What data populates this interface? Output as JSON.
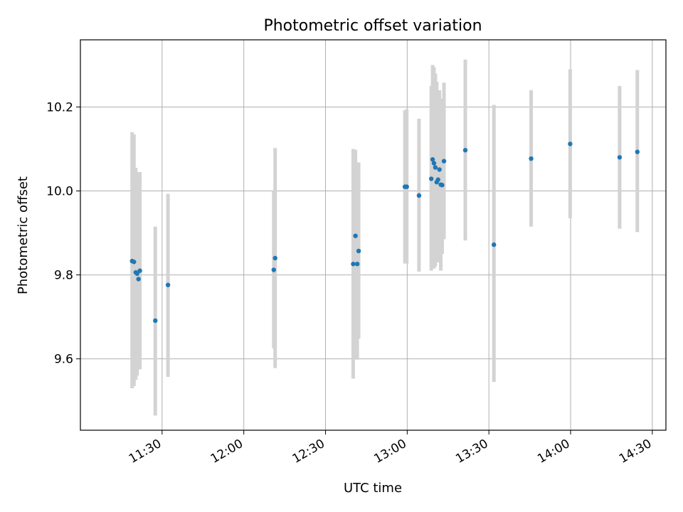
{
  "chart_data": {
    "type": "scatter",
    "title": "Photometric offset variation",
    "xlabel": "UTC time",
    "ylabel": "Photometric offset",
    "xlim": [
      "11:00",
      "14:35"
    ],
    "ylim": [
      9.43,
      10.36
    ],
    "x_ticks": [
      "11:30",
      "12:00",
      "12:30",
      "13:00",
      "13:30",
      "14:00",
      "14:30"
    ],
    "y_ticks": [
      "9.6",
      "9.8",
      "10.0",
      "10.2"
    ],
    "grid": true,
    "series": [
      {
        "marker_color": "#1f77b4",
        "errorbar_color": "#d3d3d3",
        "points": [
          {
            "x": "11:19:00",
            "y": 9.833,
            "yerr_low": 9.53,
            "yerr_high": 10.14
          },
          {
            "x": "11:19:40",
            "y": 9.831,
            "yerr_low": 9.535,
            "yerr_high": 10.135
          },
          {
            "x": "11:20:20",
            "y": 9.806,
            "yerr_low": 9.55,
            "yerr_high": 10.055
          },
          {
            "x": "11:20:50",
            "y": 9.803,
            "yerr_low": 9.56,
            "yerr_high": 10.045
          },
          {
            "x": "11:21:20",
            "y": 9.79,
            "yerr_low": 9.575,
            "yerr_high": 10.045
          },
          {
            "x": "11:21:50",
            "y": 9.81,
            "yerr_low": 9.575,
            "yerr_high": 10.045
          },
          {
            "x": "11:27:30",
            "y": 9.691,
            "yerr_low": 9.465,
            "yerr_high": 9.915
          },
          {
            "x": "11:32:10",
            "y": 9.776,
            "yerr_low": 9.557,
            "yerr_high": 9.993
          },
          {
            "x": "12:11:00",
            "y": 9.812,
            "yerr_low": 9.625,
            "yerr_high": 10.0
          },
          {
            "x": "12:11:30",
            "y": 9.84,
            "yerr_low": 9.578,
            "yerr_high": 10.102
          },
          {
            "x": "12:40:10",
            "y": 9.826,
            "yerr_low": 9.553,
            "yerr_high": 10.1
          },
          {
            "x": "12:41:00",
            "y": 9.893,
            "yerr_low": 9.6,
            "yerr_high": 10.098
          },
          {
            "x": "12:41:40",
            "y": 9.826,
            "yerr_low": 9.598,
            "yerr_high": 10.06
          },
          {
            "x": "12:42:10",
            "y": 9.857,
            "yerr_low": 9.648,
            "yerr_high": 10.068
          },
          {
            "x": "12:59:10",
            "y": 10.01,
            "yerr_low": 9.827,
            "yerr_high": 10.192
          },
          {
            "x": "12:59:50",
            "y": 10.01,
            "yerr_low": 9.827,
            "yerr_high": 10.195
          },
          {
            "x": "13:04:20",
            "y": 9.989,
            "yerr_low": 9.808,
            "yerr_high": 10.172
          },
          {
            "x": "13:08:50",
            "y": 10.029,
            "yerr_low": 9.81,
            "yerr_high": 10.25
          },
          {
            "x": "13:09:20",
            "y": 10.075,
            "yerr_low": 9.82,
            "yerr_high": 10.3
          },
          {
            "x": "13:09:50",
            "y": 10.066,
            "yerr_low": 9.815,
            "yerr_high": 10.295
          },
          {
            "x": "13:10:20",
            "y": 10.056,
            "yerr_low": 9.82,
            "yerr_high": 10.28
          },
          {
            "x": "13:10:50",
            "y": 10.021,
            "yerr_low": 9.84,
            "yerr_high": 10.26
          },
          {
            "x": "13:11:20",
            "y": 10.027,
            "yerr_low": 9.83,
            "yerr_high": 10.23
          },
          {
            "x": "13:11:50",
            "y": 10.051,
            "yerr_low": 9.86,
            "yerr_high": 10.24
          },
          {
            "x": "13:12:20",
            "y": 10.015,
            "yerr_low": 9.81,
            "yerr_high": 10.22
          },
          {
            "x": "13:12:50",
            "y": 10.014,
            "yerr_low": 9.85,
            "yerr_high": 10.215
          },
          {
            "x": "13:13:30",
            "y": 10.071,
            "yerr_low": 9.885,
            "yerr_high": 10.258
          },
          {
            "x": "13:21:20",
            "y": 10.097,
            "yerr_low": 9.882,
            "yerr_high": 10.313
          },
          {
            "x": "13:31:50",
            "y": 9.872,
            "yerr_low": 9.545,
            "yerr_high": 10.205
          },
          {
            "x": "13:45:30",
            "y": 10.077,
            "yerr_low": 9.915,
            "yerr_high": 10.24
          },
          {
            "x": "13:59:50",
            "y": 10.112,
            "yerr_low": 9.935,
            "yerr_high": 10.29
          },
          {
            "x": "14:18:00",
            "y": 10.08,
            "yerr_low": 9.91,
            "yerr_high": 10.25
          },
          {
            "x": "14:24:30",
            "y": 10.093,
            "yerr_low": 9.902,
            "yerr_high": 10.288
          }
        ]
      }
    ]
  }
}
